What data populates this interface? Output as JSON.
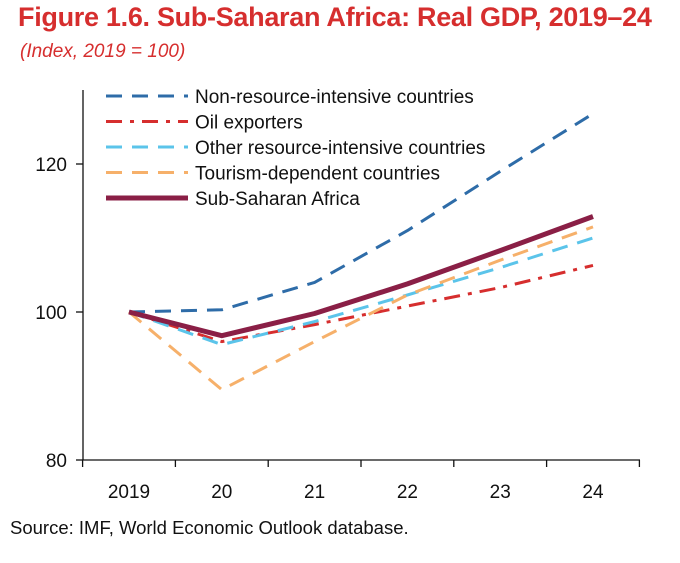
{
  "title": "Figure 1.6. Sub-Saharan Africa: Real GDP, 2019–24",
  "subtitle": "(Index, 2019 = 100)",
  "source": "Source: IMF, World Economic Outlook database.",
  "chart_data": {
    "type": "line",
    "categories": [
      "2019",
      "20",
      "21",
      "22",
      "23",
      "24"
    ],
    "ylim": [
      80,
      130
    ],
    "yticks": [
      80,
      100,
      120
    ],
    "xlabel": "",
    "ylabel": "",
    "legend_position": "top-left",
    "series": [
      {
        "name": "Non-resource-intensive countries",
        "values": [
          100,
          100.3,
          104,
          111,
          119,
          126.8
        ],
        "color": "#2e6ca8",
        "style": "dash"
      },
      {
        "name": "Oil exporters",
        "values": [
          100,
          96,
          98.3,
          100.8,
          103.3,
          106.3
        ],
        "color": "#d62e2e",
        "style": "dashdot"
      },
      {
        "name": "Other resource-intensive countries",
        "values": [
          100,
          95.6,
          98.7,
          102.3,
          106,
          110
        ],
        "color": "#5bc4ea",
        "style": "dash"
      },
      {
        "name": "Tourism-dependent countries",
        "values": [
          100,
          89.5,
          96,
          102.3,
          107,
          111.5
        ],
        "color": "#f6b06a",
        "style": "dash"
      },
      {
        "name": "Sub-Saharan Africa",
        "values": [
          100,
          96.8,
          99.8,
          103.8,
          108.3,
          112.9
        ],
        "color": "#8a1f46",
        "style": "solid"
      }
    ]
  }
}
